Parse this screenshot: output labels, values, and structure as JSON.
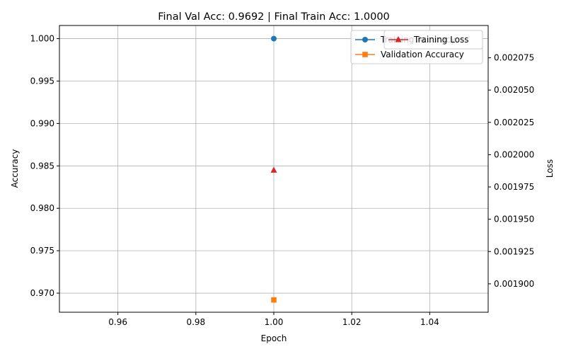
{
  "chart_data": {
    "type": "line",
    "title": "Final Val Acc: 0.9692 | Final Train Acc: 1.0000",
    "xlabel": "Epoch",
    "ylabel": "Accuracy",
    "ylabel_right": "Loss",
    "xlim": [
      0.945,
      1.055
    ],
    "ylim": [
      0.96775,
      1.00155
    ],
    "ylim_right": [
      0.001878,
      0.0021
    ],
    "x_ticks": [
      0.96,
      0.98,
      1.0,
      1.02,
      1.04
    ],
    "x_tick_labels": [
      "0.96",
      "0.98",
      "1.00",
      "1.02",
      "1.04"
    ],
    "y_ticks": [
      0.97,
      0.975,
      0.98,
      0.985,
      0.99,
      0.995,
      1.0
    ],
    "y_tick_labels": [
      "0.970",
      "0.975",
      "0.980",
      "0.985",
      "0.990",
      "0.995",
      "1.000"
    ],
    "y_right_ticks": [
      0.0019,
      0.001925,
      0.00195,
      0.001975,
      0.002,
      0.002025,
      0.00205,
      0.002075
    ],
    "y_right_tick_labels": [
      "0.001900",
      "0.001925",
      "0.001950",
      "0.001975",
      "0.002000",
      "0.002025",
      "0.002050",
      "0.002075"
    ],
    "grid": true,
    "series": [
      {
        "name": "Training Accuracy",
        "axis": "left",
        "x": [
          1
        ],
        "values": [
          1.0
        ],
        "color": "#1f77b4",
        "marker": "circle"
      },
      {
        "name": "Validation Accuracy",
        "axis": "left",
        "x": [
          1
        ],
        "values": [
          0.9692
        ],
        "color": "#ff7f0e",
        "marker": "square"
      },
      {
        "name": "Training Loss",
        "axis": "right",
        "x": [
          1
        ],
        "values": [
          0.001988
        ],
        "color": "#d62728",
        "marker": "triangle"
      }
    ],
    "legend_left": {
      "placement": "upper right",
      "entries": [
        "Training Accuracy",
        "Validation Accuracy"
      ]
    },
    "legend_right": {
      "placement": "upper right",
      "entries": [
        "Training Loss"
      ]
    }
  }
}
